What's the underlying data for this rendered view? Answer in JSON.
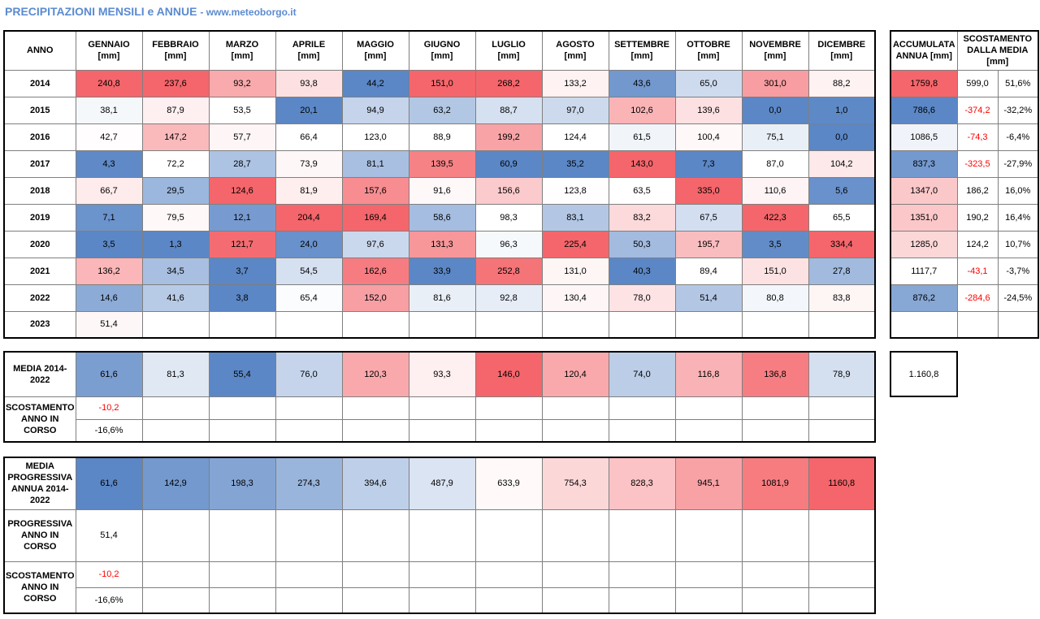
{
  "title": "PRECIPITAZIONI MENSILI e ANNUE",
  "subtitle": "- www.meteoborgo.it",
  "colors": {
    "blue": "#5b87c6",
    "red": "#f4666b",
    "white": "#ffffff",
    "negative_text": "#ff0000"
  },
  "main": {
    "year_header": "ANNO",
    "months": [
      {
        "name": "GENNAIO",
        "unit": "[mm]"
      },
      {
        "name": "FEBBRAIO",
        "unit": "[mm]"
      },
      {
        "name": "MARZO",
        "unit": "[mm]"
      },
      {
        "name": "APRILE",
        "unit": "[mm]"
      },
      {
        "name": "MAGGIO",
        "unit": "[mm]"
      },
      {
        "name": "GIUGNO",
        "unit": "[mm]"
      },
      {
        "name": "LUGLIO",
        "unit": "[mm]"
      },
      {
        "name": "AGOSTO",
        "unit": "[mm]"
      },
      {
        "name": "SETTEMBRE",
        "unit": "[mm]"
      },
      {
        "name": "OTTOBRE",
        "unit": "[mm]"
      },
      {
        "name": "NOVEMBRE",
        "unit": "[mm]"
      },
      {
        "name": "DICEMBRE",
        "unit": "[mm]"
      }
    ],
    "rows": [
      {
        "year": "2014",
        "values": [
          "240,8",
          "237,6",
          "93,2",
          "93,8",
          "44,2",
          "151,0",
          "268,2",
          "133,2",
          "43,6",
          "65,0",
          "301,0",
          "88,2"
        ]
      },
      {
        "year": "2015",
        "values": [
          "38,1",
          "87,9",
          "53,5",
          "20,1",
          "94,9",
          "63,2",
          "88,7",
          "97,0",
          "102,6",
          "139,6",
          "0,0",
          "1,0"
        ]
      },
      {
        "year": "2016",
        "values": [
          "42,7",
          "147,2",
          "57,7",
          "66,4",
          "123,0",
          "88,9",
          "199,2",
          "124,4",
          "61,5",
          "100,4",
          "75,1",
          "0,0"
        ]
      },
      {
        "year": "2017",
        "values": [
          "4,3",
          "72,2",
          "28,7",
          "73,9",
          "81,1",
          "139,5",
          "60,9",
          "35,2",
          "143,0",
          "7,3",
          "87,0",
          "104,2"
        ]
      },
      {
        "year": "2018",
        "values": [
          "66,7",
          "29,5",
          "124,6",
          "81,9",
          "157,6",
          "91,6",
          "156,6",
          "123,8",
          "63,5",
          "335,0",
          "110,6",
          "5,6"
        ]
      },
      {
        "year": "2019",
        "values": [
          "7,1",
          "79,5",
          "12,1",
          "204,4",
          "169,4",
          "58,6",
          "98,3",
          "83,1",
          "83,2",
          "67,5",
          "422,3",
          "65,5"
        ]
      },
      {
        "year": "2020",
        "values": [
          "3,5",
          "1,3",
          "121,7",
          "24,0",
          "97,6",
          "131,3",
          "96,3",
          "225,4",
          "50,3",
          "195,7",
          "3,5",
          "334,4"
        ]
      },
      {
        "year": "2021",
        "values": [
          "136,2",
          "34,5",
          "3,7",
          "54,5",
          "162,6",
          "33,9",
          "252,8",
          "131,0",
          "40,3",
          "89,4",
          "151,0",
          "27,8"
        ]
      },
      {
        "year": "2022",
        "values": [
          "14,6",
          "41,6",
          "3,8",
          "65,4",
          "152,0",
          "81,6",
          "92,8",
          "130,4",
          "78,0",
          "51,4",
          "80,8",
          "83,8"
        ]
      },
      {
        "year": "2023",
        "values": [
          "51,4",
          "",
          "",
          "",
          "",
          "",
          "",
          "",
          "",
          "",
          "",
          ""
        ]
      }
    ]
  },
  "accumulata": {
    "header_total": "ACCUMULATA ANNUA [mm]",
    "header_dev": "SCOSTAMENTO DALLA MEDIA [mm]",
    "rows": [
      {
        "total": "1759,8",
        "dev": "599,0",
        "pct": "51,6%"
      },
      {
        "total": "786,6",
        "dev": "-374,2",
        "pct": "-32,2%"
      },
      {
        "total": "1086,5",
        "dev": "-74,3",
        "pct": "-6,4%"
      },
      {
        "total": "837,3",
        "dev": "-323,5",
        "pct": "-27,9%"
      },
      {
        "total": "1347,0",
        "dev": "186,2",
        "pct": "16,0%"
      },
      {
        "total": "1351,0",
        "dev": "190,2",
        "pct": "16,4%"
      },
      {
        "total": "1285,0",
        "dev": "124,2",
        "pct": "10,7%"
      },
      {
        "total": "1117,7",
        "dev": "-43,1",
        "pct": "-3,7%"
      },
      {
        "total": "876,2",
        "dev": "-284,6",
        "pct": "-24,5%"
      },
      {
        "total": "",
        "dev": "",
        "pct": ""
      }
    ]
  },
  "media": {
    "label": "MEDIA 2014-2022",
    "values": [
      "61,6",
      "81,3",
      "55,4",
      "76,0",
      "120,3",
      "93,3",
      "146,0",
      "120,4",
      "74,0",
      "116,8",
      "136,8",
      "78,9"
    ],
    "total": "1.160,8",
    "scostamento_label": "SCOSTAMENTO ANNO IN CORSO",
    "scostamento_mm": "-10,2",
    "scostamento_pct": "-16,6%"
  },
  "progressiva": {
    "label": "MEDIA PROGRESSIVA ANNUA 2014-2022",
    "values": [
      "61,6",
      "142,9",
      "198,3",
      "274,3",
      "394,6",
      "487,9",
      "633,9",
      "754,3",
      "828,3",
      "945,1",
      "1081,9",
      "1160,8"
    ],
    "anno_label": "PROGRESSIVA ANNO IN CORSO",
    "anno_value": "51,4",
    "scostamento_label": "SCOSTAMENTO ANNO IN CORSO",
    "scostamento_mm": "-10,2",
    "scostamento_pct": "-16,6%"
  }
}
